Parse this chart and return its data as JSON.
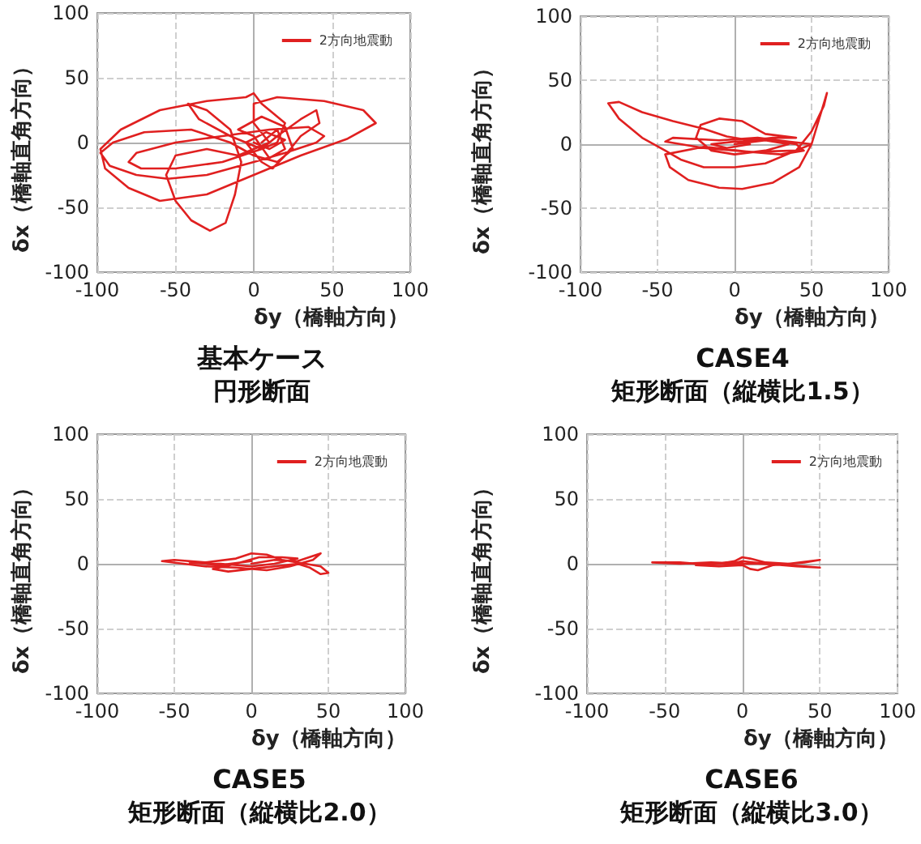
{
  "chart_data": [
    {
      "type": "line",
      "title": "基本ケース",
      "subtitle": "円形断面",
      "xlabel": "δy（橋軸方向）",
      "ylabel": "δx（橋軸直角方向）",
      "xlim": [
        -100,
        100
      ],
      "ylim": [
        -100,
        100
      ],
      "xticks": [
        -100,
        -50,
        0,
        50,
        100
      ],
      "yticks": [
        -100,
        -50,
        0,
        50,
        100
      ],
      "grid": true,
      "legend": "top right",
      "marker": "none",
      "series": [
        {
          "name": "2方向地震動",
          "color": "#e02020",
          "x": [
            5,
            15,
            20,
            10,
            0,
            -10,
            5,
            20,
            25,
            15,
            0,
            -15,
            -40,
            -70,
            -90,
            -98,
            -92,
            -75,
            -55,
            -30,
            0,
            20,
            40,
            45,
            35,
            10,
            -20,
            -50,
            -75,
            -80,
            -72,
            -50,
            -20,
            5,
            15,
            20,
            5,
            0,
            -5,
            -30,
            -60,
            -85,
            -98,
            -95,
            -80,
            -60,
            -30,
            0,
            30,
            60,
            78,
            70,
            45,
            15,
            0,
            0,
            10,
            -10,
            -30,
            -50,
            -56,
            -50,
            -40,
            -28,
            -18,
            -12,
            -8,
            -15,
            -30,
            -42,
            -35,
            -15,
            5,
            15,
            30,
            40,
            42,
            30,
            20,
            12,
            5,
            -5,
            8,
            20,
            10,
            0
          ],
          "values": [
            0,
            10,
            -5,
            -12,
            5,
            10,
            20,
            12,
            -5,
            -15,
            -10,
            0,
            10,
            8,
            0,
            -8,
            -18,
            -25,
            -28,
            -25,
            -15,
            -8,
            0,
            5,
            12,
            10,
            5,
            0,
            -8,
            -15,
            -20,
            -20,
            -15,
            -5,
            0,
            15,
            30,
            38,
            35,
            32,
            25,
            10,
            -5,
            -20,
            -35,
            -45,
            -40,
            -25,
            -10,
            3,
            15,
            25,
            32,
            35,
            30,
            15,
            0,
            -10,
            -5,
            -10,
            -25,
            -45,
            -60,
            -68,
            -62,
            -40,
            -15,
            10,
            25,
            30,
            18,
            5,
            -5,
            5,
            18,
            25,
            15,
            5,
            -10,
            -20,
            -15,
            0,
            8,
            2,
            -5,
            0
          ]
        }
      ]
    },
    {
      "type": "line",
      "title": "CASE4",
      "subtitle": "矩形断面（縦横比1.5）",
      "xlabel": "δy（橋軸方向）",
      "ylabel": "δx（橋軸直角方向）",
      "xlim": [
        -100,
        100
      ],
      "ylim": [
        -100,
        100
      ],
      "xticks": [
        -100,
        -50,
        0,
        50,
        100
      ],
      "yticks": [
        -100,
        -50,
        0,
        50,
        100
      ],
      "grid": true,
      "legend": "top right",
      "marker": "none",
      "series": [
        {
          "name": "2方向地震動",
          "color": "#e02020",
          "x": [
            0,
            20,
            40,
            45,
            30,
            0,
            -20,
            -45,
            -40,
            -10,
            15,
            35,
            50,
            40,
            10,
            -20,
            -45,
            -42,
            -30,
            -10,
            5,
            25,
            42,
            50,
            55,
            60,
            58,
            50,
            40,
            20,
            0,
            -20,
            -35,
            -45,
            -60,
            -75,
            -82,
            -75,
            -60,
            -40,
            -20,
            -5,
            10,
            25,
            40,
            20,
            5,
            -10,
            -22,
            -25,
            -15,
            0,
            20,
            35,
            20,
            0,
            -15,
            -5,
            10,
            0
          ],
          "values": [
            0,
            3,
            0,
            -5,
            -8,
            -5,
            -3,
            2,
            5,
            3,
            5,
            2,
            0,
            -5,
            -6,
            -2,
            -8,
            -18,
            -28,
            -34,
            -35,
            -30,
            -18,
            0,
            20,
            40,
            30,
            10,
            -5,
            -15,
            -18,
            -18,
            -12,
            -5,
            5,
            20,
            32,
            33,
            25,
            18,
            12,
            6,
            3,
            5,
            5,
            8,
            18,
            20,
            15,
            5,
            -5,
            -8,
            -5,
            0,
            3,
            2,
            0,
            -3,
            0,
            2
          ]
        }
      ]
    },
    {
      "type": "line",
      "title": "CASE5",
      "subtitle": "矩形断面（縦横比2.0）",
      "xlabel": "δy（橋軸方向）",
      "ylabel": "δx（橋軸直角方向）",
      "xlim": [
        -100,
        100
      ],
      "ylim": [
        -100,
        100
      ],
      "xticks": [
        -100,
        -50,
        0,
        50,
        100
      ],
      "yticks": [
        -100,
        -50,
        0,
        50,
        100
      ],
      "grid": true,
      "legend": "top right",
      "marker": "none",
      "series": [
        {
          "name": "2方向地震動",
          "color": "#e02020",
          "x": [
            0,
            15,
            30,
            45,
            40,
            25,
            10,
            -10,
            -30,
            -58,
            -50,
            -30,
            -10,
            0,
            10,
            20,
            35,
            45,
            50,
            45,
            38,
            30,
            15,
            0,
            -15,
            -25,
            -10,
            5,
            20,
            30,
            15,
            0,
            -20,
            -40,
            -20,
            0
          ],
          "values": [
            0,
            3,
            2,
            8,
            3,
            -2,
            -5,
            -3,
            -2,
            2,
            3,
            1,
            4,
            8,
            7,
            3,
            0,
            -2,
            -7,
            -8,
            -3,
            0,
            -2,
            -4,
            -6,
            -4,
            0,
            5,
            5,
            4,
            0,
            -2,
            0,
            1,
            -1,
            2
          ]
        }
      ]
    },
    {
      "type": "line",
      "title": "CASE6",
      "subtitle": "矩形断面（縦横比3.0）",
      "xlabel": "δy（橋軸方向）",
      "ylabel": "δx（橋軸直角方向）",
      "xlim": [
        -100,
        100
      ],
      "ylim": [
        -100,
        100
      ],
      "xticks": [
        -100,
        -50,
        0,
        50,
        100
      ],
      "yticks": [
        -100,
        -50,
        0,
        50,
        100
      ],
      "grid": true,
      "legend": "top right",
      "marker": "none",
      "series": [
        {
          "name": "2方向地震動",
          "color": "#e02020",
          "x": [
            0,
            -20,
            -40,
            -58,
            -40,
            -20,
            -5,
            0,
            5,
            15,
            30,
            50,
            40,
            20,
            10,
            5,
            0,
            -15,
            -30,
            -10,
            10,
            30,
            50,
            35,
            15,
            0,
            -10,
            0
          ],
          "values": [
            0,
            1,
            0,
            1,
            1,
            -1,
            2,
            5,
            4,
            1,
            0,
            3,
            1,
            -1,
            -5,
            -4,
            -1,
            -2,
            -1,
            0,
            0,
            -1,
            -3,
            -2,
            0,
            2,
            -1,
            1
          ]
        }
      ]
    }
  ]
}
